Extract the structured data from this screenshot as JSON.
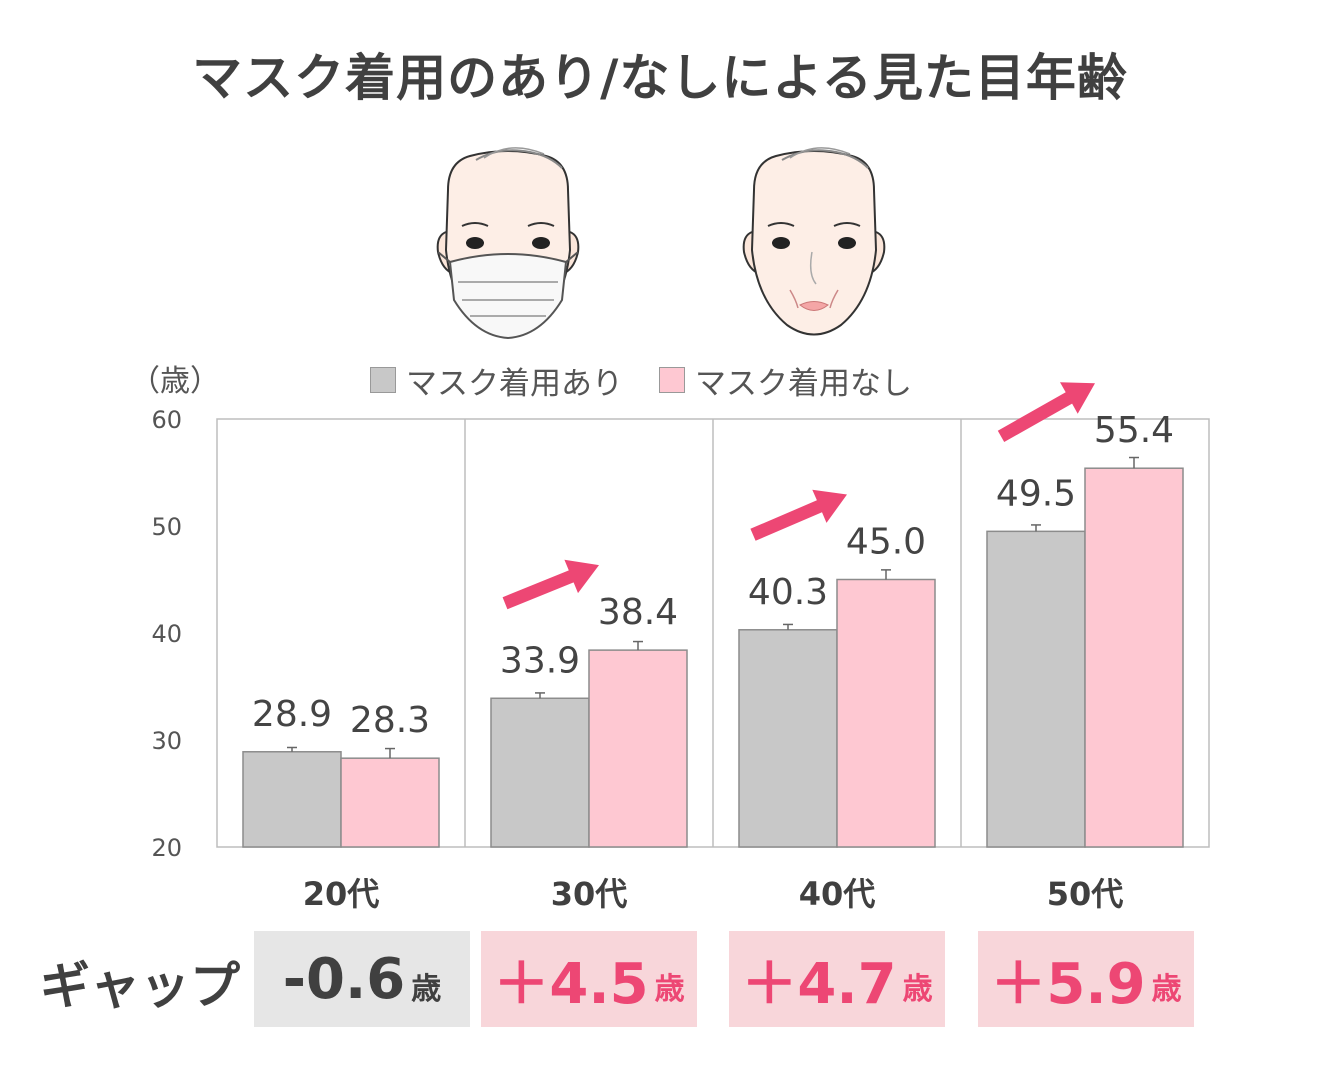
{
  "title": "マスク着用のあり/なしによる見た目年齢",
  "unit_label": "（歳）",
  "legend": [
    {
      "label": "マスク着用あり",
      "color": "#c8c8c8"
    },
    {
      "label": "マスク着用なし",
      "color": "#fec8d2"
    }
  ],
  "gap": {
    "label": "ギャップ",
    "unit": "歳",
    "items": [
      {
        "value": "-0.6",
        "style": "neutral"
      },
      {
        "value": "＋4.5",
        "style": "positive"
      },
      {
        "value": "＋4.7",
        "style": "positive"
      },
      {
        "value": "＋5.9",
        "style": "positive"
      }
    ]
  },
  "colors": {
    "title_text": "#404040",
    "masked_bar": "#c8c8c8",
    "unmasked_bar": "#fec8d2",
    "arrow": "#ed4774",
    "gap_neutral_bg": "#e6e6e6",
    "gap_neutral_text": "#404040",
    "gap_positive_bg": "#f8d6da",
    "gap_positive_text": "#ed4774"
  },
  "icons": [
    "masked-face-illustration",
    "unmasked-face-illustration",
    "up-trend-arrow-icon"
  ],
  "chart_data": {
    "type": "bar",
    "categories": [
      "20代",
      "30代",
      "40代",
      "50代"
    ],
    "series": [
      {
        "name": "マスク着用あり",
        "values": [
          28.9,
          33.9,
          40.3,
          49.5
        ],
        "labels": [
          "28.9",
          "33.9",
          "40.3",
          "49.5"
        ]
      },
      {
        "name": "マスク着用なし",
        "values": [
          28.3,
          38.4,
          45.0,
          55.4
        ],
        "labels": [
          "28.3",
          "38.4",
          "45.0",
          "55.4"
        ]
      }
    ],
    "error_bars": [
      [
        0.4,
        0.5,
        0.5,
        0.6
      ],
      [
        0.9,
        0.8,
        0.9,
        1.0
      ]
    ],
    "trend_arrows": [
      false,
      true,
      true,
      true
    ],
    "ylabel": "（歳）",
    "ylim": [
      20,
      60
    ],
    "yticks": [
      20,
      30,
      40,
      50,
      60
    ],
    "grid": false,
    "legend": "top"
  }
}
